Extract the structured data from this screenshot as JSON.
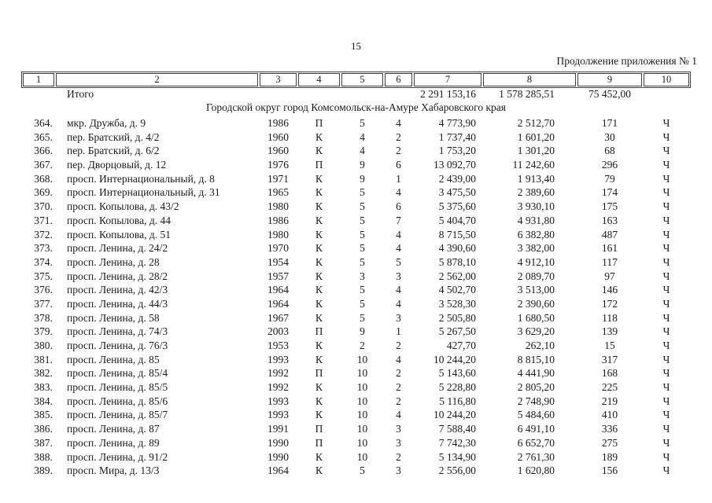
{
  "page": {
    "number": "15",
    "continuation": "Продолжение приложения № 1"
  },
  "header": {
    "columns": [
      "1",
      "2",
      "3",
      "4",
      "5",
      "6",
      "7",
      "8",
      "9",
      "10"
    ]
  },
  "totals": {
    "label": "Итого",
    "col7": "2 291 153,16",
    "col8": "1 578 285,51",
    "col9": "75 452,00"
  },
  "section": {
    "title": "Городской округ город Комсомольск-на-Амуре Хабаровского края"
  },
  "table": {
    "rows": [
      {
        "num": "364.",
        "address": "мкр. Дружба, д. 9",
        "year": "1986",
        "type": "П",
        "floors": "5",
        "entrances": "4",
        "col7": "4 773,90",
        "col8": "2 512,70",
        "col9": "171",
        "col10": "Ч"
      },
      {
        "num": "365.",
        "address": "пер. Братский, д. 4/2",
        "year": "1960",
        "type": "К",
        "floors": "4",
        "entrances": "2",
        "col7": "1 737,40",
        "col8": "1 601,20",
        "col9": "30",
        "col10": "Ч"
      },
      {
        "num": "366.",
        "address": "пер. Братский, д. 6/2",
        "year": "1960",
        "type": "К",
        "floors": "4",
        "entrances": "2",
        "col7": "1 753,20",
        "col8": "1 301,20",
        "col9": "68",
        "col10": "Ч"
      },
      {
        "num": "367.",
        "address": "пер. Дворцовый, д. 12",
        "year": "1976",
        "type": "П",
        "floors": "9",
        "entrances": "6",
        "col7": "13 092,70",
        "col8": "11 242,60",
        "col9": "296",
        "col10": "Ч"
      },
      {
        "num": "368.",
        "address": "просп. Интернациональный, д. 8",
        "year": "1971",
        "type": "К",
        "floors": "9",
        "entrances": "1",
        "col7": "2 439,00",
        "col8": "1 913,40",
        "col9": "79",
        "col10": "Ч"
      },
      {
        "num": "369.",
        "address": "просп. Интернациональный, д. 31",
        "year": "1965",
        "type": "К",
        "floors": "5",
        "entrances": "4",
        "col7": "3 475,50",
        "col8": "2 389,60",
        "col9": "174",
        "col10": "Ч"
      },
      {
        "num": "370.",
        "address": "просп. Копылова, д. 43/2",
        "year": "1980",
        "type": "К",
        "floors": "5",
        "entrances": "6",
        "col7": "5 375,60",
        "col8": "3 930,10",
        "col9": "175",
        "col10": "Ч"
      },
      {
        "num": "371.",
        "address": "просп. Копылова, д. 44",
        "year": "1986",
        "type": "К",
        "floors": "5",
        "entrances": "7",
        "col7": "5 404,70",
        "col8": "4 931,80",
        "col9": "163",
        "col10": "Ч"
      },
      {
        "num": "372.",
        "address": "просп. Копылова, д. 51",
        "year": "1980",
        "type": "К",
        "floors": "5",
        "entrances": "4",
        "col7": "8 715,50",
        "col8": "6 382,80",
        "col9": "487",
        "col10": "Ч"
      },
      {
        "num": "373.",
        "address": "просп. Ленина, д. 24/2",
        "year": "1970",
        "type": "К",
        "floors": "5",
        "entrances": "4",
        "col7": "4 390,60",
        "col8": "3 382,00",
        "col9": "161",
        "col10": "Ч"
      },
      {
        "num": "374.",
        "address": "просп. Ленина, д. 28",
        "year": "1954",
        "type": "К",
        "floors": "5",
        "entrances": "5",
        "col7": "5 878,10",
        "col8": "4 912,10",
        "col9": "117",
        "col10": "Ч"
      },
      {
        "num": "375.",
        "address": "просп. Ленина, д. 28/2",
        "year": "1957",
        "type": "К",
        "floors": "3",
        "entrances": "3",
        "col7": "2 562,00",
        "col8": "2 089,70",
        "col9": "97",
        "col10": "Ч"
      },
      {
        "num": "376.",
        "address": "просп. Ленина, д. 42/3",
        "year": "1964",
        "type": "К",
        "floors": "5",
        "entrances": "4",
        "col7": "4 502,70",
        "col8": "3 513,00",
        "col9": "146",
        "col10": "Ч"
      },
      {
        "num": "377.",
        "address": "просп. Ленина, д. 44/3",
        "year": "1964",
        "type": "К",
        "floors": "5",
        "entrances": "4",
        "col7": "3 528,30",
        "col8": "2 390,60",
        "col9": "172",
        "col10": "Ч"
      },
      {
        "num": "378.",
        "address": "просп. Ленина, д. 58",
        "year": "1967",
        "type": "К",
        "floors": "5",
        "entrances": "3",
        "col7": "2 505,80",
        "col8": "1 680,50",
        "col9": "118",
        "col10": "Ч"
      },
      {
        "num": "379.",
        "address": "просп. Ленина, д. 74/3",
        "year": "2003",
        "type": "П",
        "floors": "9",
        "entrances": "1",
        "col7": "5 267,50",
        "col8": "3 629,20",
        "col9": "139",
        "col10": "Ч"
      },
      {
        "num": "380.",
        "address": "просп. Ленина, д. 76/3",
        "year": "1953",
        "type": "К",
        "floors": "2",
        "entrances": "2",
        "col7": "427,70",
        "col8": "262,10",
        "col9": "15",
        "col10": "Ч"
      },
      {
        "num": "381.",
        "address": "просп. Ленина, д. 85",
        "year": "1993",
        "type": "К",
        "floors": "10",
        "entrances": "4",
        "col7": "10 244,20",
        "col8": "8 815,10",
        "col9": "317",
        "col10": "Ч"
      },
      {
        "num": "382.",
        "address": "просп. Ленина, д. 85/4",
        "year": "1992",
        "type": "П",
        "floors": "10",
        "entrances": "2",
        "col7": "5 143,60",
        "col8": "4 441,90",
        "col9": "168",
        "col10": "Ч"
      },
      {
        "num": "383.",
        "address": "просп. Ленина, д. 85/5",
        "year": "1992",
        "type": "К",
        "floors": "10",
        "entrances": "2",
        "col7": "5 228,80",
        "col8": "2 805,20",
        "col9": "225",
        "col10": "Ч"
      },
      {
        "num": "384.",
        "address": "просп. Ленина, д. 85/6",
        "year": "1993",
        "type": "К",
        "floors": "10",
        "entrances": "2",
        "col7": "5 116,80",
        "col8": "2 748,90",
        "col9": "219",
        "col10": "Ч"
      },
      {
        "num": "385.",
        "address": "просп. Ленина, д. 85/7",
        "year": "1993",
        "type": "К",
        "floors": "10",
        "entrances": "4",
        "col7": "10 244,20",
        "col8": "5 484,60",
        "col9": "410",
        "col10": "Ч"
      },
      {
        "num": "386.",
        "address": "просп. Ленина, д. 87",
        "year": "1991",
        "type": "П",
        "floors": "10",
        "entrances": "3",
        "col7": "7 588,40",
        "col8": "6 491,10",
        "col9": "336",
        "col10": "Ч"
      },
      {
        "num": "387.",
        "address": "просп. Ленина, д. 89",
        "year": "1990",
        "type": "П",
        "floors": "10",
        "entrances": "3",
        "col7": "7 742,30",
        "col8": "6 652,70",
        "col9": "275",
        "col10": "Ч"
      },
      {
        "num": "388.",
        "address": "просп. Ленина, д. 91/2",
        "year": "1990",
        "type": "К",
        "floors": "10",
        "entrances": "2",
        "col7": "5 134,90",
        "col8": "2 761,30",
        "col9": "189",
        "col10": "Ч"
      },
      {
        "num": "389.",
        "address": "просп. Мира, д. 13/3",
        "year": "1964",
        "type": "К",
        "floors": "5",
        "entrances": "3",
        "col7": "2 556,00",
        "col8": "1 620,80",
        "col9": "156",
        "col10": "Ч"
      }
    ]
  }
}
